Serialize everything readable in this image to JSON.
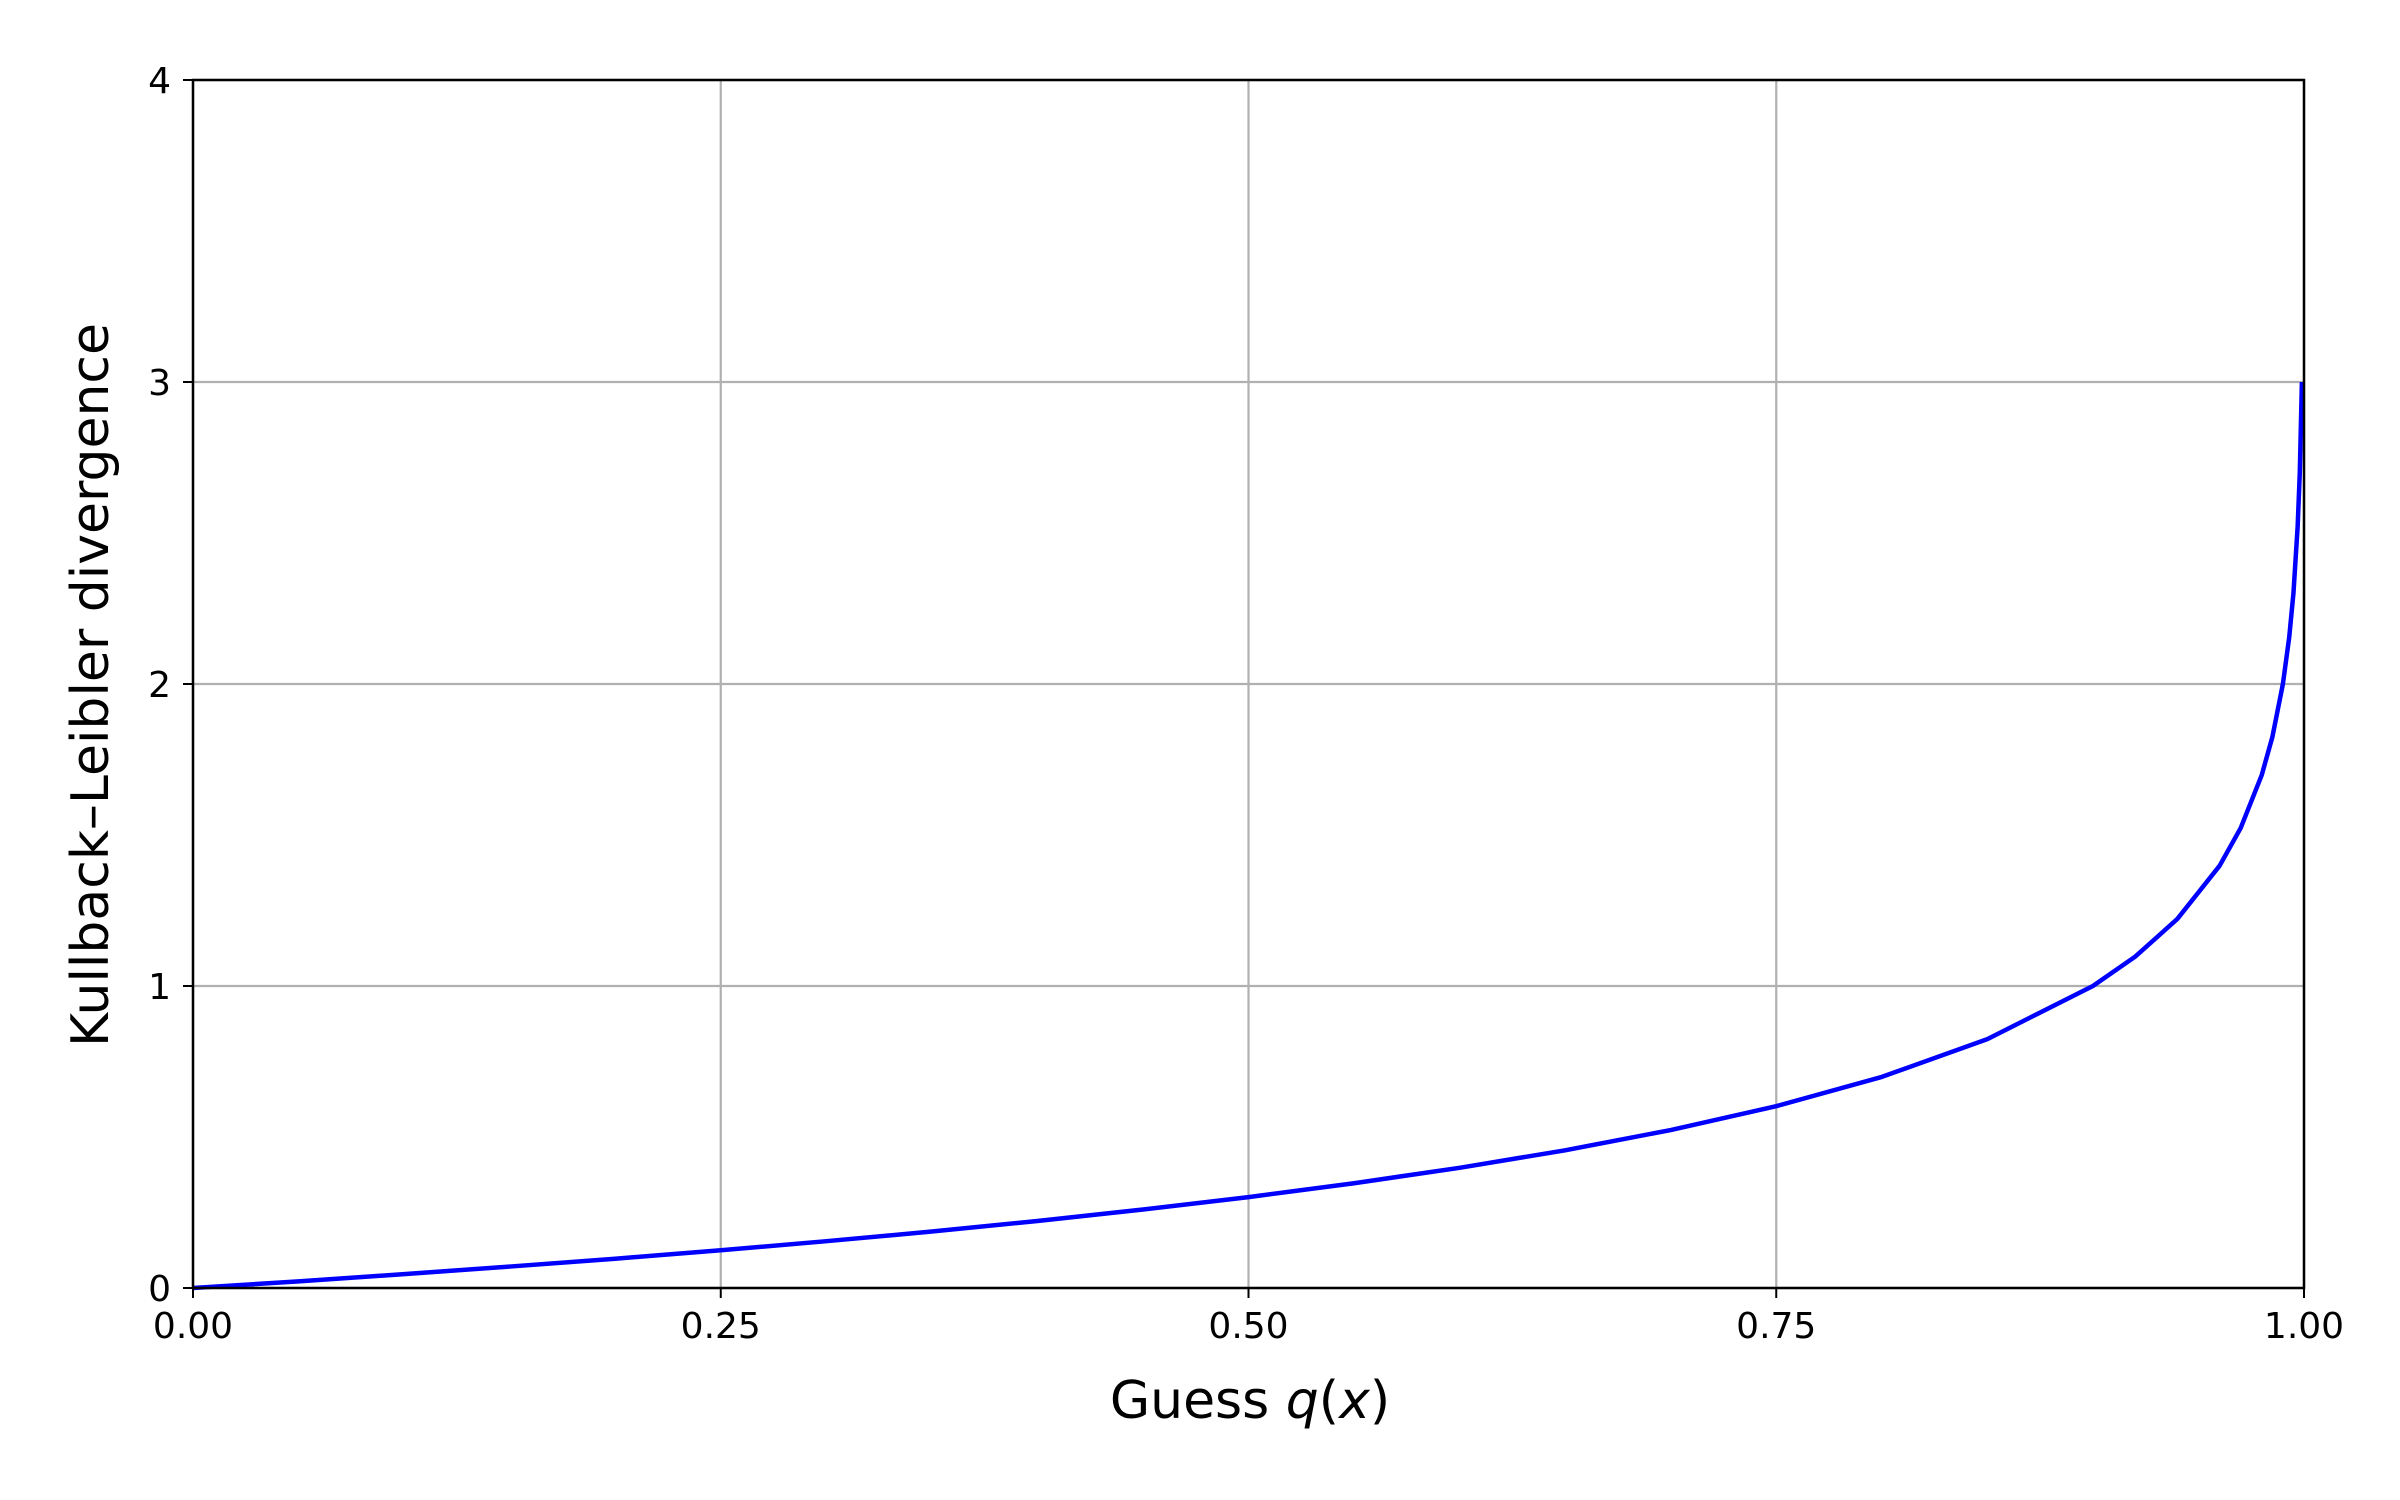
{
  "chart_data": {
    "type": "line",
    "xlabel": "Guess q(x)",
    "xlabel_parts": {
      "prefix": "Guess ",
      "var": "q",
      "open": "(",
      "arg": "x",
      "close": ")"
    },
    "ylabel": "Kullback–Leibler divergence",
    "xlim": [
      0,
      1
    ],
    "ylim": [
      0,
      4
    ],
    "x_ticks": [
      0,
      0.25,
      0.5,
      0.75,
      1.0
    ],
    "x_tick_labels": [
      "0.00",
      "0.25",
      "0.50",
      "0.75",
      "1.00"
    ],
    "y_ticks": [
      0,
      1,
      2,
      3,
      4
    ],
    "y_tick_labels": [
      "0",
      "1",
      "2",
      "3",
      "4"
    ],
    "grid": true,
    "series": [
      {
        "color": "#0000ff",
        "x": [
          0,
          0.05,
          0.1,
          0.15,
          0.2,
          0.25,
          0.3,
          0.35,
          0.4,
          0.45,
          0.5,
          0.55,
          0.6,
          0.65,
          0.7,
          0.75,
          0.8,
          0.85,
          0.9,
          0.92,
          0.94,
          0.96,
          0.97,
          0.98,
          0.985,
          0.99,
          0.993,
          0.995,
          0.997,
          0.998,
          0.999
        ],
        "y": [
          0,
          0.022,
          0.046,
          0.071,
          0.097,
          0.125,
          0.155,
          0.187,
          0.222,
          0.26,
          0.301,
          0.347,
          0.398,
          0.456,
          0.523,
          0.602,
          0.699,
          0.824,
          1.0,
          1.097,
          1.222,
          1.398,
          1.523,
          1.699,
          1.824,
          2.0,
          2.155,
          2.301,
          2.523,
          2.699,
          3.0
        ]
      }
    ],
    "colors": {
      "line": "#0000ff",
      "grid": "#b0b0b0",
      "axes": "#000000",
      "background": "#ffffff"
    }
  }
}
